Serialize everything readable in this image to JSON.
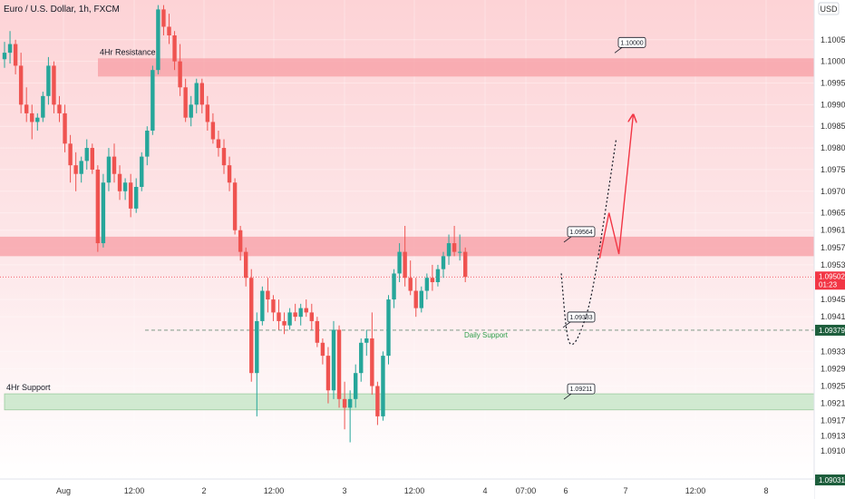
{
  "header": {
    "symbol_title": "Euro / U.S. Dollar, 1h, FXCM",
    "currency_button": "USD"
  },
  "colors": {
    "up": "#26a69a",
    "down": "#ef5350",
    "resistance_zone": "#f7a1a8",
    "support_zone": "#c8e6c9",
    "projection": "#f23645",
    "support_label": "#2e9e4a",
    "price_badge": "#f23645",
    "bg_top": "#fdd5d8",
    "bg_bottom": "#ffffff"
  },
  "chart_data": {
    "type": "candlestick",
    "title": "Euro / U.S. Dollar, 1h, FXCM",
    "ylim": [
      1.09031,
      1.10135
    ],
    "y_ticks": [
      "1.10050",
      "1.10000",
      "1.09950",
      "1.09900",
      "1.09850",
      "1.09800",
      "1.09750",
      "1.09700",
      "1.09650",
      "1.09610",
      "1.09570",
      "1.09530",
      "1.09450",
      "1.09410",
      "1.09330",
      "1.09290",
      "1.09250",
      "1.09210",
      "1.09170",
      "1.09135",
      "1.09100"
    ],
    "x_ticks": [
      "Aug",
      "12:00",
      "2",
      "12:00",
      "3",
      "12:00",
      "4",
      "07:00",
      "6",
      "7",
      "12:00",
      "8"
    ],
    "zones": [
      {
        "name": "4Hr Resistance",
        "low": 1.09965,
        "high": 1.10007,
        "callout": "1.10000"
      },
      {
        "name": "",
        "low": 1.0955,
        "high": 1.09595,
        "callout": "1.09564"
      },
      {
        "name": "4Hr Support",
        "low": 1.09195,
        "high": 1.09232,
        "callout": "1.09211"
      }
    ],
    "daily_support": {
      "label": "Daily Support",
      "price": 1.09379,
      "callout": "1.09383"
    },
    "current_price": {
      "price": 1.09502,
      "countdown": "01:23"
    },
    "bottom_price": "1.09031",
    "projection_path": [
      {
        "t": 108.5,
        "p": 1.09545
      },
      {
        "t": 110.2,
        "p": 1.0965
      },
      {
        "t": 112.0,
        "p": 1.09555
      },
      {
        "t": 114.6,
        "p": 1.09875
      }
    ],
    "dotted_path": [
      {
        "t": 101.5,
        "p": 1.0951
      },
      {
        "t": 102.5,
        "p": 1.0936
      },
      {
        "t": 103.5,
        "p": 1.0934
      },
      {
        "t": 105.0,
        "p": 1.09372
      },
      {
        "t": 107.0,
        "p": 1.0945
      },
      {
        "t": 109.5,
        "p": 1.0965
      },
      {
        "t": 111.5,
        "p": 1.0982
      }
    ],
    "candles": [
      {
        "o": 1.10005,
        "h": 1.10045,
        "l": 1.09985,
        "c": 1.1002
      },
      {
        "o": 1.1002,
        "h": 1.1007,
        "l": 1.09995,
        "c": 1.1004
      },
      {
        "o": 1.1004,
        "h": 1.1005,
        "l": 1.0997,
        "c": 1.0999
      },
      {
        "o": 1.0999,
        "h": 1.1002,
        "l": 1.0988,
        "c": 1.099
      },
      {
        "o": 1.099,
        "h": 1.0994,
        "l": 1.0986,
        "c": 1.0988
      },
      {
        "o": 1.0988,
        "h": 1.099,
        "l": 1.0982,
        "c": 1.0986
      },
      {
        "o": 1.0986,
        "h": 1.0988,
        "l": 1.0984,
        "c": 1.0987
      },
      {
        "o": 1.0987,
        "h": 1.0993,
        "l": 1.0986,
        "c": 1.0992
      },
      {
        "o": 1.0992,
        "h": 1.1001,
        "l": 1.099,
        "c": 1.0999
      },
      {
        "o": 1.0999,
        "h": 1.1,
        "l": 1.0988,
        "c": 1.099
      },
      {
        "o": 1.099,
        "h": 1.0992,
        "l": 1.0986,
        "c": 1.0988
      },
      {
        "o": 1.0988,
        "h": 1.099,
        "l": 1.0979,
        "c": 1.0981
      },
      {
        "o": 1.0981,
        "h": 1.0983,
        "l": 1.0972,
        "c": 1.0976
      },
      {
        "o": 1.0976,
        "h": 1.0979,
        "l": 1.097,
        "c": 1.0974
      },
      {
        "o": 1.0974,
        "h": 1.0978,
        "l": 1.0972,
        "c": 1.0977
      },
      {
        "o": 1.0977,
        "h": 1.0982,
        "l": 1.0975,
        "c": 1.098
      },
      {
        "o": 1.098,
        "h": 1.0981,
        "l": 1.0974,
        "c": 1.0975
      },
      {
        "o": 1.0975,
        "h": 1.0976,
        "l": 1.0956,
        "c": 1.0958
      },
      {
        "o": 1.0958,
        "h": 1.0974,
        "l": 1.0957,
        "c": 1.0972
      },
      {
        "o": 1.0972,
        "h": 1.098,
        "l": 1.097,
        "c": 1.0978
      },
      {
        "o": 1.0978,
        "h": 1.0981,
        "l": 1.0972,
        "c": 1.0974
      },
      {
        "o": 1.0974,
        "h": 1.0976,
        "l": 1.0968,
        "c": 1.097
      },
      {
        "o": 1.097,
        "h": 1.0973,
        "l": 1.0968,
        "c": 1.0972
      },
      {
        "o": 1.0972,
        "h": 1.0974,
        "l": 1.0964,
        "c": 1.0966
      },
      {
        "o": 1.0966,
        "h": 1.0973,
        "l": 1.0965,
        "c": 1.0971
      },
      {
        "o": 1.0971,
        "h": 1.0979,
        "l": 1.097,
        "c": 1.0978
      },
      {
        "o": 1.0978,
        "h": 1.0985,
        "l": 1.0976,
        "c": 1.0984
      },
      {
        "o": 1.0984,
        "h": 1.0999,
        "l": 1.0983,
        "c": 1.0998
      },
      {
        "o": 1.0998,
        "h": 1.1013,
        "l": 1.0997,
        "c": 1.1012
      },
      {
        "o": 1.1012,
        "h": 1.1013,
        "l": 1.1006,
        "c": 1.1008
      },
      {
        "o": 1.1008,
        "h": 1.1011,
        "l": 1.1004,
        "c": 1.1006
      },
      {
        "o": 1.1006,
        "h": 1.1007,
        "l": 1.0998,
        "c": 1.1
      },
      {
        "o": 1.1,
        "h": 1.1004,
        "l": 1.0992,
        "c": 1.0994
      },
      {
        "o": 1.0994,
        "h": 1.0996,
        "l": 1.0986,
        "c": 1.0987
      },
      {
        "o": 1.0987,
        "h": 1.0992,
        "l": 1.0985,
        "c": 1.099
      },
      {
        "o": 1.099,
        "h": 1.0996,
        "l": 1.0988,
        "c": 1.0995
      },
      {
        "o": 1.0995,
        "h": 1.0996,
        "l": 1.0988,
        "c": 1.099
      },
      {
        "o": 1.099,
        "h": 1.0992,
        "l": 1.0984,
        "c": 1.0986
      },
      {
        "o": 1.0986,
        "h": 1.0988,
        "l": 1.0981,
        "c": 1.0982
      },
      {
        "o": 1.0982,
        "h": 1.0984,
        "l": 1.0978,
        "c": 1.098
      },
      {
        "o": 1.098,
        "h": 1.0982,
        "l": 1.0974,
        "c": 1.0976
      },
      {
        "o": 1.0976,
        "h": 1.0978,
        "l": 1.097,
        "c": 1.0972
      },
      {
        "o": 1.0972,
        "h": 1.0973,
        "l": 1.096,
        "c": 1.0961
      },
      {
        "o": 1.0961,
        "h": 1.0962,
        "l": 1.0954,
        "c": 1.0956
      },
      {
        "o": 1.0956,
        "h": 1.0957,
        "l": 1.0948,
        "c": 1.095
      },
      {
        "o": 1.095,
        "h": 1.0952,
        "l": 1.0926,
        "c": 1.0928
      },
      {
        "o": 1.0928,
        "h": 1.0942,
        "l": 1.0918,
        "c": 1.094
      },
      {
        "o": 1.094,
        "h": 1.0948,
        "l": 1.0939,
        "c": 1.0947
      },
      {
        "o": 1.0947,
        "h": 1.095,
        "l": 1.0942,
        "c": 1.0945
      },
      {
        "o": 1.0945,
        "h": 1.0946,
        "l": 1.094,
        "c": 1.0942
      },
      {
        "o": 1.0942,
        "h": 1.0945,
        "l": 1.0938,
        "c": 1.094
      },
      {
        "o": 1.094,
        "h": 1.0942,
        "l": 1.0937,
        "c": 1.0939
      },
      {
        "o": 1.0939,
        "h": 1.0943,
        "l": 1.0938,
        "c": 1.0942
      },
      {
        "o": 1.0942,
        "h": 1.0944,
        "l": 1.094,
        "c": 1.0941
      },
      {
        "o": 1.0941,
        "h": 1.0944,
        "l": 1.0939,
        "c": 1.0943
      },
      {
        "o": 1.0943,
        "h": 1.0945,
        "l": 1.0941,
        "c": 1.0942
      },
      {
        "o": 1.0942,
        "h": 1.0944,
        "l": 1.0938,
        "c": 1.094
      },
      {
        "o": 1.094,
        "h": 1.0941,
        "l": 1.0934,
        "c": 1.0935
      },
      {
        "o": 1.0935,
        "h": 1.0936,
        "l": 1.093,
        "c": 1.0932
      },
      {
        "o": 1.0932,
        "h": 1.0934,
        "l": 1.0921,
        "c": 1.0924
      },
      {
        "o": 1.0924,
        "h": 1.094,
        "l": 1.0922,
        "c": 1.0938
      },
      {
        "o": 1.0938,
        "h": 1.0939,
        "l": 1.092,
        "c": 1.0922
      },
      {
        "o": 1.0922,
        "h": 1.0926,
        "l": 1.0915,
        "c": 1.092
      },
      {
        "o": 1.092,
        "h": 1.0924,
        "l": 1.0912,
        "c": 1.0922
      },
      {
        "o": 1.0922,
        "h": 1.093,
        "l": 1.092,
        "c": 1.0928
      },
      {
        "o": 1.0928,
        "h": 1.0936,
        "l": 1.0926,
        "c": 1.0935
      },
      {
        "o": 1.0935,
        "h": 1.0938,
        "l": 1.0932,
        "c": 1.0936
      },
      {
        "o": 1.0936,
        "h": 1.0942,
        "l": 1.0923,
        "c": 1.0925
      },
      {
        "o": 1.0925,
        "h": 1.0926,
        "l": 1.0916,
        "c": 1.0918
      },
      {
        "o": 1.0918,
        "h": 1.0933,
        "l": 1.0917,
        "c": 1.0932
      },
      {
        "o": 1.0932,
        "h": 1.0946,
        "l": 1.093,
        "c": 1.0945
      },
      {
        "o": 1.0945,
        "h": 1.0952,
        "l": 1.0943,
        "c": 1.0951
      },
      {
        "o": 1.0951,
        "h": 1.0958,
        "l": 1.0949,
        "c": 1.0956
      },
      {
        "o": 1.0956,
        "h": 1.0962,
        "l": 1.0948,
        "c": 1.095
      },
      {
        "o": 1.095,
        "h": 1.0954,
        "l": 1.0946,
        "c": 1.0947
      },
      {
        "o": 1.0947,
        "h": 1.095,
        "l": 1.0941,
        "c": 1.0943
      },
      {
        "o": 1.0943,
        "h": 1.0948,
        "l": 1.0942,
        "c": 1.0947
      },
      {
        "o": 1.0947,
        "h": 1.0951,
        "l": 1.0945,
        "c": 1.095
      },
      {
        "o": 1.095,
        "h": 1.0953,
        "l": 1.0947,
        "c": 1.0949
      },
      {
        "o": 1.0949,
        "h": 1.0953,
        "l": 1.0948,
        "c": 1.0952
      },
      {
        "o": 1.0952,
        "h": 1.0956,
        "l": 1.095,
        "c": 1.0955
      },
      {
        "o": 1.0955,
        "h": 1.096,
        "l": 1.0953,
        "c": 1.0958
      },
      {
        "o": 1.0958,
        "h": 1.0962,
        "l": 1.0955,
        "c": 1.0956
      },
      {
        "o": 1.0956,
        "h": 1.096,
        "l": 1.0954,
        "c": 1.0956
      },
      {
        "o": 1.0956,
        "h": 1.0957,
        "l": 1.0949,
        "c": 1.09502
      }
    ]
  }
}
